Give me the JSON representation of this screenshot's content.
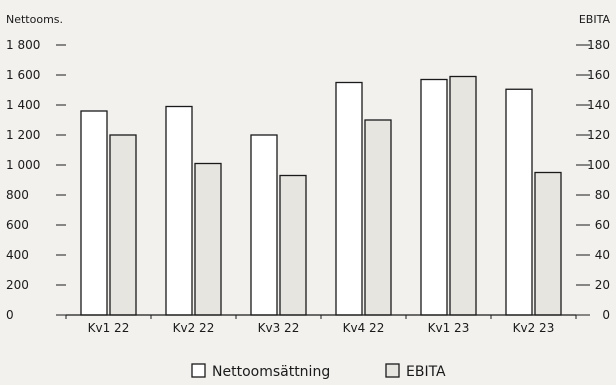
{
  "chart_data": {
    "type": "bar",
    "categories": [
      "Kv1 22",
      "Kv2 22",
      "Kv3 22",
      "Kv4 22",
      "Kv1 23",
      "Kv2 23"
    ],
    "series": [
      {
        "name": "Nettoomsättning",
        "axis": "left",
        "values": [
          1360,
          1390,
          1200,
          1550,
          1570,
          1505
        ],
        "color": "#ffffff"
      },
      {
        "name": "EBITA",
        "axis": "right",
        "values": [
          120,
          101,
          93,
          130,
          159,
          95
        ],
        "color": "#e6e5e0"
      }
    ],
    "y_left": {
      "label": "Nettooms.",
      "ticks": [
        "0",
        "200",
        "400",
        "600",
        "800",
        "1 000",
        "1 200",
        "1 400",
        "1 600",
        "1 800"
      ],
      "ylim": [
        0,
        1800
      ]
    },
    "y_right": {
      "label": "EBITA",
      "ticks": [
        "0",
        "20",
        "40",
        "60",
        "80",
        "100",
        "120",
        "140",
        "160",
        "180"
      ],
      "ylim": [
        0,
        180
      ]
    },
    "legend_position": "bottom-center",
    "grid": false,
    "bar_edge_color": "#1a1a1a",
    "background": "#f2f1ee"
  }
}
